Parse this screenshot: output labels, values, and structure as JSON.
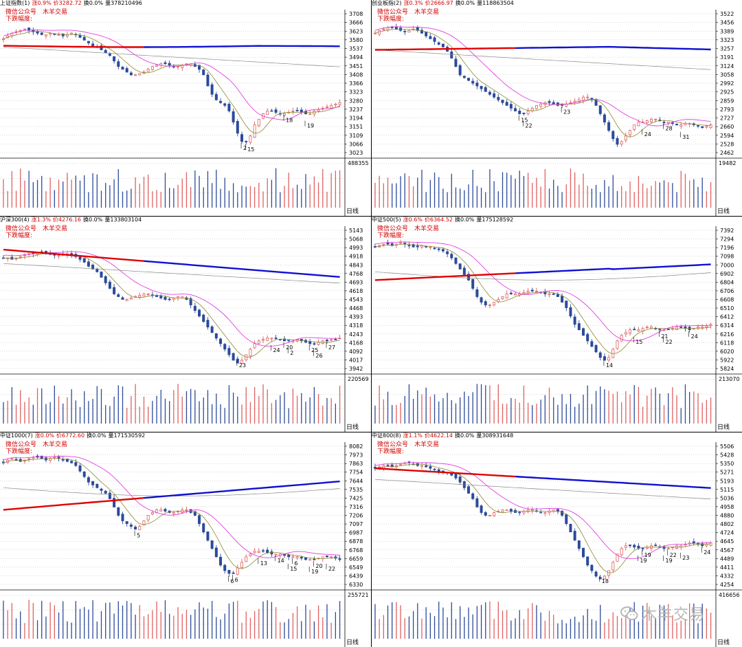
{
  "panels": [
    {
      "name": "上证指数",
      "idx": "(1)",
      "chg": "涨0.9%",
      "price": "价3282.72",
      "turn": "换0.0%",
      "vol": "量378210496",
      "badge1": "微信公众号　木羊交易",
      "badge2": "下跌幅度:",
      "ticks": [
        "3708",
        "3666",
        "3623",
        "3580",
        "3537",
        "3494",
        "3451",
        "3408",
        "3366",
        "3323",
        "3280",
        "3237",
        "3194",
        "3151",
        "3109",
        "3066",
        "3023"
      ],
      "vol_max": "488355",
      "period": "日线",
      "counts": [
        "2",
        "15",
        "18",
        "19"
      ]
    },
    {
      "name": "创业板指",
      "idx": "(2)",
      "chg": "涨0.3%",
      "price": "价2666.97",
      "turn": "换0.0%",
      "vol": "量118863504",
      "badge1": "微信公众号　木羊交易",
      "badge2": "下跌幅度:",
      "ticks": [
        "3522",
        "3456",
        "3389",
        "3323",
        "3257",
        "3191",
        "3124",
        "3058",
        "2992",
        "2925",
        "2859",
        "2793",
        "2727",
        "2660",
        "2594",
        "2528",
        "2462"
      ],
      "vol_max": "19482",
      "period": "日线",
      "counts": [
        "15",
        "22",
        "23",
        "24",
        "28",
        "31"
      ]
    },
    {
      "name": "沪深300",
      "idx": "(4)",
      "chg": "涨1.3%",
      "price": "价4276.16",
      "turn": "换0.0%",
      "vol": "量133803104",
      "badge1": "微信公众号　木羊交易",
      "badge2": "下跌幅度:",
      "ticks": [
        "5143",
        "5068",
        "4993",
        "4918",
        "4843",
        "4768",
        "4693",
        "4618",
        "4543",
        "4468",
        "4393",
        "4318",
        "4243",
        "4168",
        "4092",
        "4017",
        "3942"
      ],
      "vol_max": "220569",
      "period": "日线",
      "counts": [
        "23",
        "24",
        "20",
        "2",
        "25",
        "26",
        "27"
      ]
    },
    {
      "name": "中证500",
      "idx": "(5)",
      "chg": "涨0.6%",
      "price": "价6364.52",
      "turn": "换0.0%",
      "vol": "量175128592",
      "badge1": "微信公众号　木羊交易",
      "badge2": "下跌幅度:",
      "ticks": [
        "7392",
        "7294",
        "7196",
        "7098",
        "7000",
        "6902",
        "6804",
        "6706",
        "6608",
        "6510",
        "6412",
        "6314",
        "6216",
        "6118",
        "6020",
        "5922",
        "5824"
      ],
      "vol_max": "213070",
      "period": "日线",
      "counts": [
        "14",
        "15",
        "21",
        "22",
        "24"
      ]
    },
    {
      "name": "中证1000",
      "idx": "(7)",
      "chg": "涨0.0%",
      "price": "价6772.60",
      "turn": "换0.0%",
      "vol": "量171530592",
      "badge1": "微信公众号　木羊交易",
      "badge2": "下跌幅度:",
      "ticks": [
        "8082",
        "7973",
        "7863",
        "7754",
        "7644",
        "7535",
        "7425",
        "7316",
        "7206",
        "7097",
        "6987",
        "6878",
        "6768",
        "6659",
        "6549",
        "6439",
        "6330"
      ],
      "vol_max": "255721",
      "period": "日线",
      "counts": [
        "5",
        "6",
        "6",
        "13",
        "14",
        "15",
        "6",
        "19",
        "20",
        "22"
      ]
    },
    {
      "name": "中证800",
      "idx": "(8)",
      "chg": "涨1.1%",
      "price": "价4622.14",
      "turn": "换0.0%",
      "vol": "量308931648",
      "badge1": "微信公众号　木羊交易",
      "badge2": "下跌幅度:",
      "ticks": [
        "5506",
        "5428",
        "5350",
        "5271",
        "5193",
        "5115",
        "5036",
        "4958",
        "4880",
        "4802",
        "4724",
        "4645",
        "4567",
        "4489",
        "4411",
        "4332",
        "4254"
      ],
      "vol_max": "416656",
      "period": "日线",
      "counts": [
        "18",
        "19",
        "19",
        "19",
        "22",
        "23",
        "24"
      ]
    }
  ],
  "watermark": "木羊交易",
  "colors": {
    "up": "#e06060",
    "down": "#2b4a9a",
    "ma_thick_red": "#e00000",
    "ma_thick_blue": "#1010d0",
    "ma_pink": "#e040e0",
    "ma_olive": "#8a8a30",
    "ma_gray": "#888888",
    "grid": "#b0b0b0"
  }
}
